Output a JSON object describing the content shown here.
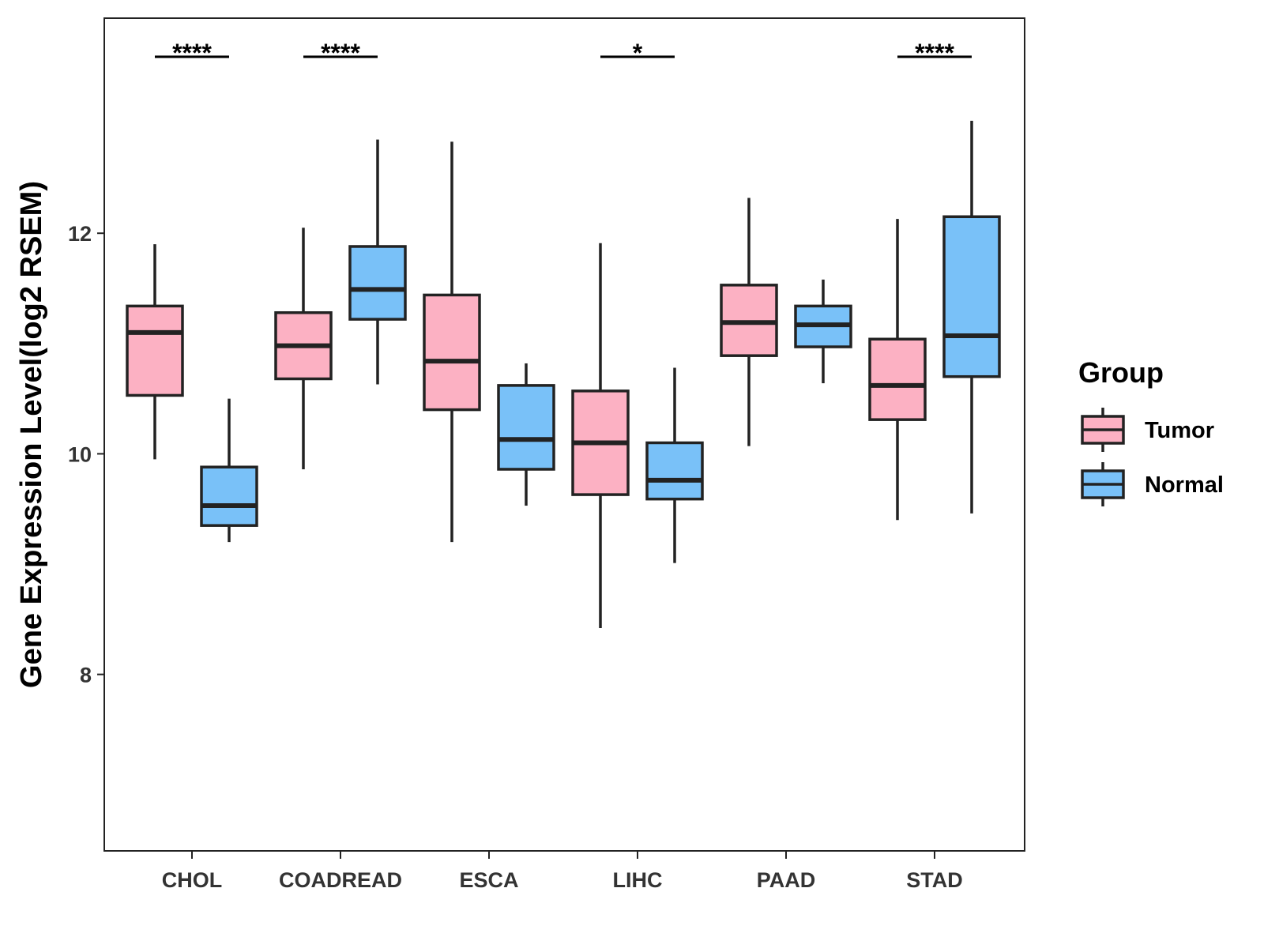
{
  "chart_data": {
    "type": "boxplot",
    "title": "",
    "xlabel": "",
    "ylabel": "Gene Expression Level(log2 RSEM)",
    "ylim": [
      6.4,
      13.95
    ],
    "yticks": [
      8,
      10,
      12
    ],
    "categories": [
      "CHOL",
      "COADREAD",
      "ESCA",
      "LIHC",
      "PAAD",
      "STAD"
    ],
    "legend": {
      "title": "Group",
      "position": "right",
      "entries": [
        {
          "label": "Tumor",
          "color": "#fcb1c3"
        },
        {
          "label": "Normal",
          "color": "#79c1f8"
        }
      ]
    },
    "series": [
      {
        "name": "Tumor",
        "color": "#fcb1c3",
        "boxes": [
          {
            "category": "CHOL",
            "min": 9.95,
            "q1": 10.53,
            "median": 11.1,
            "q3": 11.34,
            "max": 11.9
          },
          {
            "category": "COADREAD",
            "min": 9.86,
            "q1": 10.68,
            "median": 10.98,
            "q3": 11.28,
            "max": 12.05
          },
          {
            "category": "ESCA",
            "min": 9.2,
            "q1": 10.4,
            "median": 10.84,
            "q3": 11.44,
            "max": 12.83
          },
          {
            "category": "LIHC",
            "min": 8.42,
            "q1": 9.63,
            "median": 10.1,
            "q3": 10.57,
            "max": 11.91
          },
          {
            "category": "PAAD",
            "min": 10.07,
            "q1": 10.89,
            "median": 11.19,
            "q3": 11.53,
            "max": 12.32
          },
          {
            "category": "STAD",
            "min": 9.4,
            "q1": 10.31,
            "median": 10.62,
            "q3": 11.04,
            "max": 12.13
          }
        ]
      },
      {
        "name": "Normal",
        "color": "#79c1f8",
        "boxes": [
          {
            "category": "CHOL",
            "min": 9.2,
            "q1": 9.35,
            "median": 9.53,
            "q3": 9.88,
            "max": 10.5
          },
          {
            "category": "COADREAD",
            "min": 10.63,
            "q1": 11.22,
            "median": 11.49,
            "q3": 11.88,
            "max": 12.85
          },
          {
            "category": "ESCA",
            "min": 9.53,
            "q1": 9.86,
            "median": 10.13,
            "q3": 10.62,
            "max": 10.82
          },
          {
            "category": "LIHC",
            "min": 9.01,
            "q1": 9.59,
            "median": 9.76,
            "q3": 10.1,
            "max": 10.78
          },
          {
            "category": "PAAD",
            "min": 10.64,
            "q1": 10.97,
            "median": 11.17,
            "q3": 11.34,
            "max": 11.58
          },
          {
            "category": "STAD",
            "min": 9.46,
            "q1": 10.7,
            "median": 11.07,
            "q3": 12.15,
            "max": 13.02
          }
        ]
      }
    ],
    "significance": [
      {
        "category": "CHOL",
        "label": "****"
      },
      {
        "category": "COADREAD",
        "label": "****"
      },
      {
        "category": "LIHC",
        "label": "*"
      },
      {
        "category": "STAD",
        "label": "****"
      }
    ],
    "significance_bar_y": 13.6
  }
}
